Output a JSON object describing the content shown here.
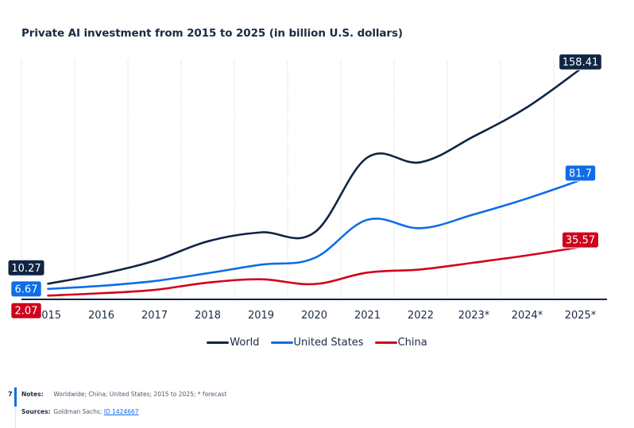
{
  "chart_data": {
    "type": "line",
    "title": "Private AI investment from 2015 to 2025 (in billion U.S. dollars)",
    "xlabel": "",
    "ylabel": "",
    "categories": [
      "2015",
      "2016",
      "2017",
      "2018",
      "2019",
      "2020",
      "2021",
      "2022",
      "2023*",
      "2024*",
      "2025*"
    ],
    "ylim": [
      0,
      160
    ],
    "grid": "vertical",
    "legend_position": "bottom-center",
    "series": [
      {
        "name": "World",
        "color": "#0f2543",
        "values": [
          10.27,
          17.0,
          26.1,
          39.5,
          45.7,
          45.5,
          97.4,
          94.1,
          112.0,
          132.1,
          158.41
        ],
        "labels": {
          "first": "10.27",
          "last": "158.41"
        }
      },
      {
        "name": "United States",
        "color": "#0e6de8",
        "values": [
          6.67,
          8.8,
          12.1,
          17.5,
          23.4,
          27.9,
          54.4,
          48.6,
          58.1,
          69.1,
          81.7
        ],
        "labels": {
          "first": "6.67",
          "last": "81.7"
        }
      },
      {
        "name": "China",
        "color": "#d0021b",
        "values": [
          2.07,
          3.7,
          6.0,
          11.0,
          13.3,
          10.0,
          17.9,
          20.1,
          24.8,
          29.8,
          35.57
        ],
        "labels": {
          "first": "2.07",
          "last": "35.57"
        }
      }
    ]
  },
  "footer": {
    "number": "7",
    "notes_label": "Notes:",
    "notes_text": "Worldwide; China; United States; 2015 to 2025; * forecast",
    "sources_label": "Sources:",
    "sources_text": "Goldman Sachs; ",
    "sources_link": "ID 1424667"
  }
}
